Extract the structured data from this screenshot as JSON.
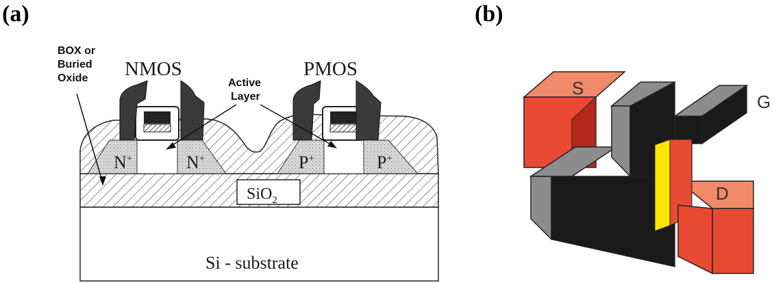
{
  "panels": {
    "a_label": "(a)",
    "b_label": "(b)"
  },
  "diagram_a": {
    "box_label_line1": "BOX or",
    "box_label_line2": "Buried",
    "box_label_line3": "Oxide",
    "nmos": "NMOS",
    "pmos": "PMOS",
    "active_line1": "Active",
    "active_line2": "Layer",
    "n_plus": "N",
    "p_plus": "P",
    "plus": "+",
    "sio2_main": "SiO",
    "sio2_sub": "2",
    "substrate": "Si - substrate"
  },
  "diagram_b": {
    "source": "S",
    "gate": "G",
    "drain": "D",
    "colors": {
      "orange": "#f08a6a",
      "red": "#e84a34",
      "darkred": "#b32a1c",
      "black": "#1a1a1a",
      "gray": "#8c8c8c",
      "yellow": "#ffe600"
    }
  }
}
